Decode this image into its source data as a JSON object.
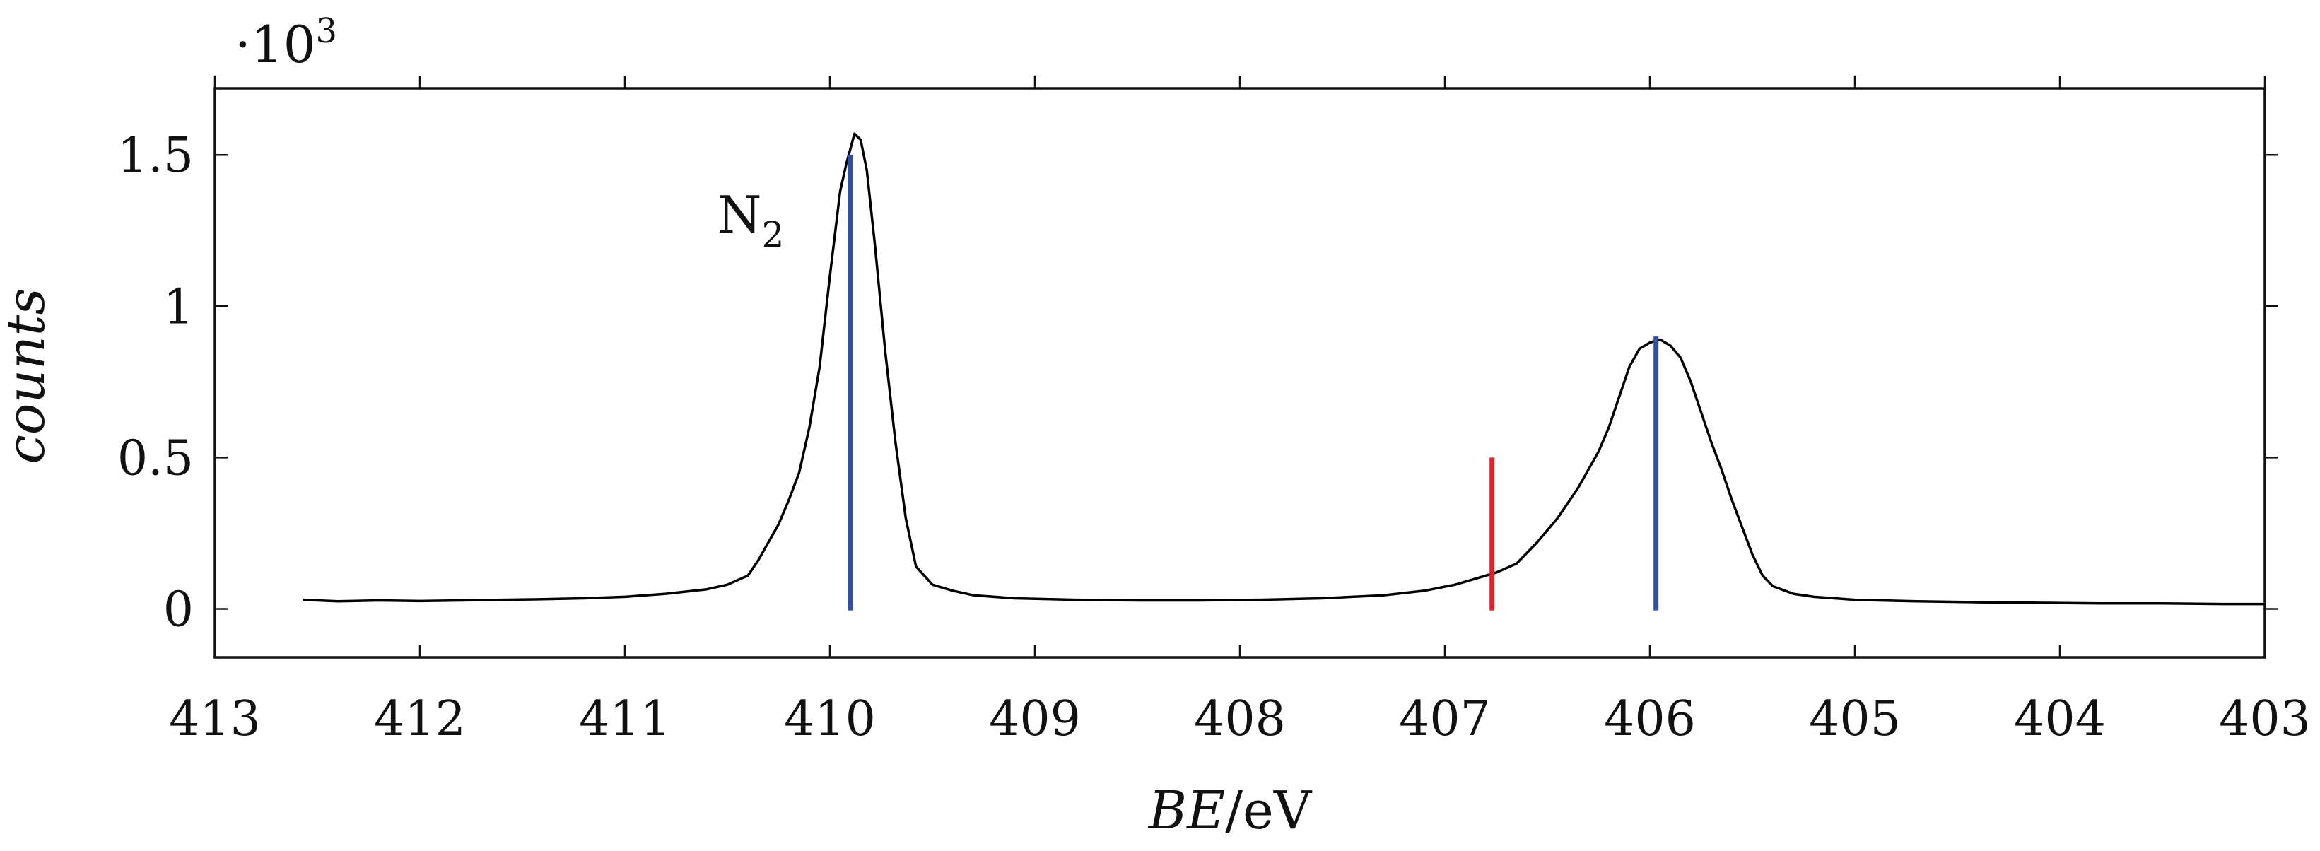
{
  "chart_data": {
    "type": "line",
    "xlabel_italic": "BE",
    "xlabel_unit": "/eV",
    "ylabel": "counts",
    "y_multiplier_base": "·10",
    "y_multiplier_exp": "3",
    "xlim": [
      413,
      403
    ],
    "ylim": [
      -0.16,
      1.72
    ],
    "x_reversed": true,
    "grid": false,
    "x_ticks": [
      413,
      412,
      411,
      410,
      409,
      408,
      407,
      406,
      405,
      404,
      403
    ],
    "x_tick_labels": [
      "413",
      "412",
      "411",
      "410",
      "409",
      "408",
      "407",
      "406",
      "405",
      "404",
      "403"
    ],
    "y_ticks": [
      0,
      0.5,
      1,
      1.5
    ],
    "y_tick_labels": [
      "0",
      "0.5",
      "1",
      "1.5"
    ],
    "series": [
      {
        "color": "#000000",
        "points": [
          [
            412.57,
            0.03
          ],
          [
            412.4,
            0.025
          ],
          [
            412.2,
            0.028
          ],
          [
            412.0,
            0.026
          ],
          [
            411.8,
            0.028
          ],
          [
            411.6,
            0.03
          ],
          [
            411.4,
            0.032
          ],
          [
            411.2,
            0.035
          ],
          [
            411.0,
            0.04
          ],
          [
            410.8,
            0.05
          ],
          [
            410.6,
            0.065
          ],
          [
            410.5,
            0.08
          ],
          [
            410.4,
            0.11
          ],
          [
            410.35,
            0.16
          ],
          [
            410.3,
            0.22
          ],
          [
            410.25,
            0.28
          ],
          [
            410.2,
            0.36
          ],
          [
            410.15,
            0.45
          ],
          [
            410.1,
            0.6
          ],
          [
            410.05,
            0.8
          ],
          [
            410.0,
            1.1
          ],
          [
            409.95,
            1.38
          ],
          [
            409.92,
            1.47
          ],
          [
            409.88,
            1.57
          ],
          [
            409.85,
            1.55
          ],
          [
            409.82,
            1.45
          ],
          [
            409.78,
            1.2
          ],
          [
            409.73,
            0.85
          ],
          [
            409.68,
            0.55
          ],
          [
            409.63,
            0.3
          ],
          [
            409.58,
            0.14
          ],
          [
            409.5,
            0.08
          ],
          [
            409.4,
            0.06
          ],
          [
            409.3,
            0.045
          ],
          [
            409.1,
            0.035
          ],
          [
            408.8,
            0.03
          ],
          [
            408.5,
            0.028
          ],
          [
            408.2,
            0.028
          ],
          [
            407.9,
            0.03
          ],
          [
            407.6,
            0.035
          ],
          [
            407.3,
            0.045
          ],
          [
            407.1,
            0.06
          ],
          [
            406.95,
            0.08
          ],
          [
            406.85,
            0.1
          ],
          [
            406.75,
            0.12
          ],
          [
            406.65,
            0.15
          ],
          [
            406.55,
            0.22
          ],
          [
            406.45,
            0.3
          ],
          [
            406.35,
            0.4
          ],
          [
            406.25,
            0.52
          ],
          [
            406.2,
            0.6
          ],
          [
            406.15,
            0.7
          ],
          [
            406.1,
            0.8
          ],
          [
            406.05,
            0.86
          ],
          [
            406.0,
            0.88
          ],
          [
            405.95,
            0.89
          ],
          [
            405.9,
            0.87
          ],
          [
            405.85,
            0.83
          ],
          [
            405.8,
            0.75
          ],
          [
            405.75,
            0.65
          ],
          [
            405.7,
            0.55
          ],
          [
            405.65,
            0.46
          ],
          [
            405.6,
            0.36
          ],
          [
            405.55,
            0.27
          ],
          [
            405.5,
            0.18
          ],
          [
            405.45,
            0.11
          ],
          [
            405.4,
            0.075
          ],
          [
            405.3,
            0.05
          ],
          [
            405.2,
            0.04
          ],
          [
            405.0,
            0.03
          ],
          [
            404.7,
            0.025
          ],
          [
            404.4,
            0.022
          ],
          [
            404.1,
            0.02
          ],
          [
            403.8,
            0.018
          ],
          [
            403.5,
            0.018
          ],
          [
            403.2,
            0.016
          ],
          [
            403.0,
            0.016
          ]
        ]
      }
    ],
    "markers": [
      {
        "x": 409.9,
        "y0": -0.005,
        "y1": 1.5,
        "color": "#2e4fa3"
      },
      {
        "x": 405.97,
        "y0": -0.005,
        "y1": 0.9,
        "color": "#2e4fa3"
      },
      {
        "x": 406.77,
        "y0": -0.005,
        "y1": 0.5,
        "color": "#ee1c25"
      }
    ],
    "annotations": [
      {
        "text": "N",
        "sub": "2",
        "x": 410.55,
        "y": 1.3
      }
    ]
  }
}
